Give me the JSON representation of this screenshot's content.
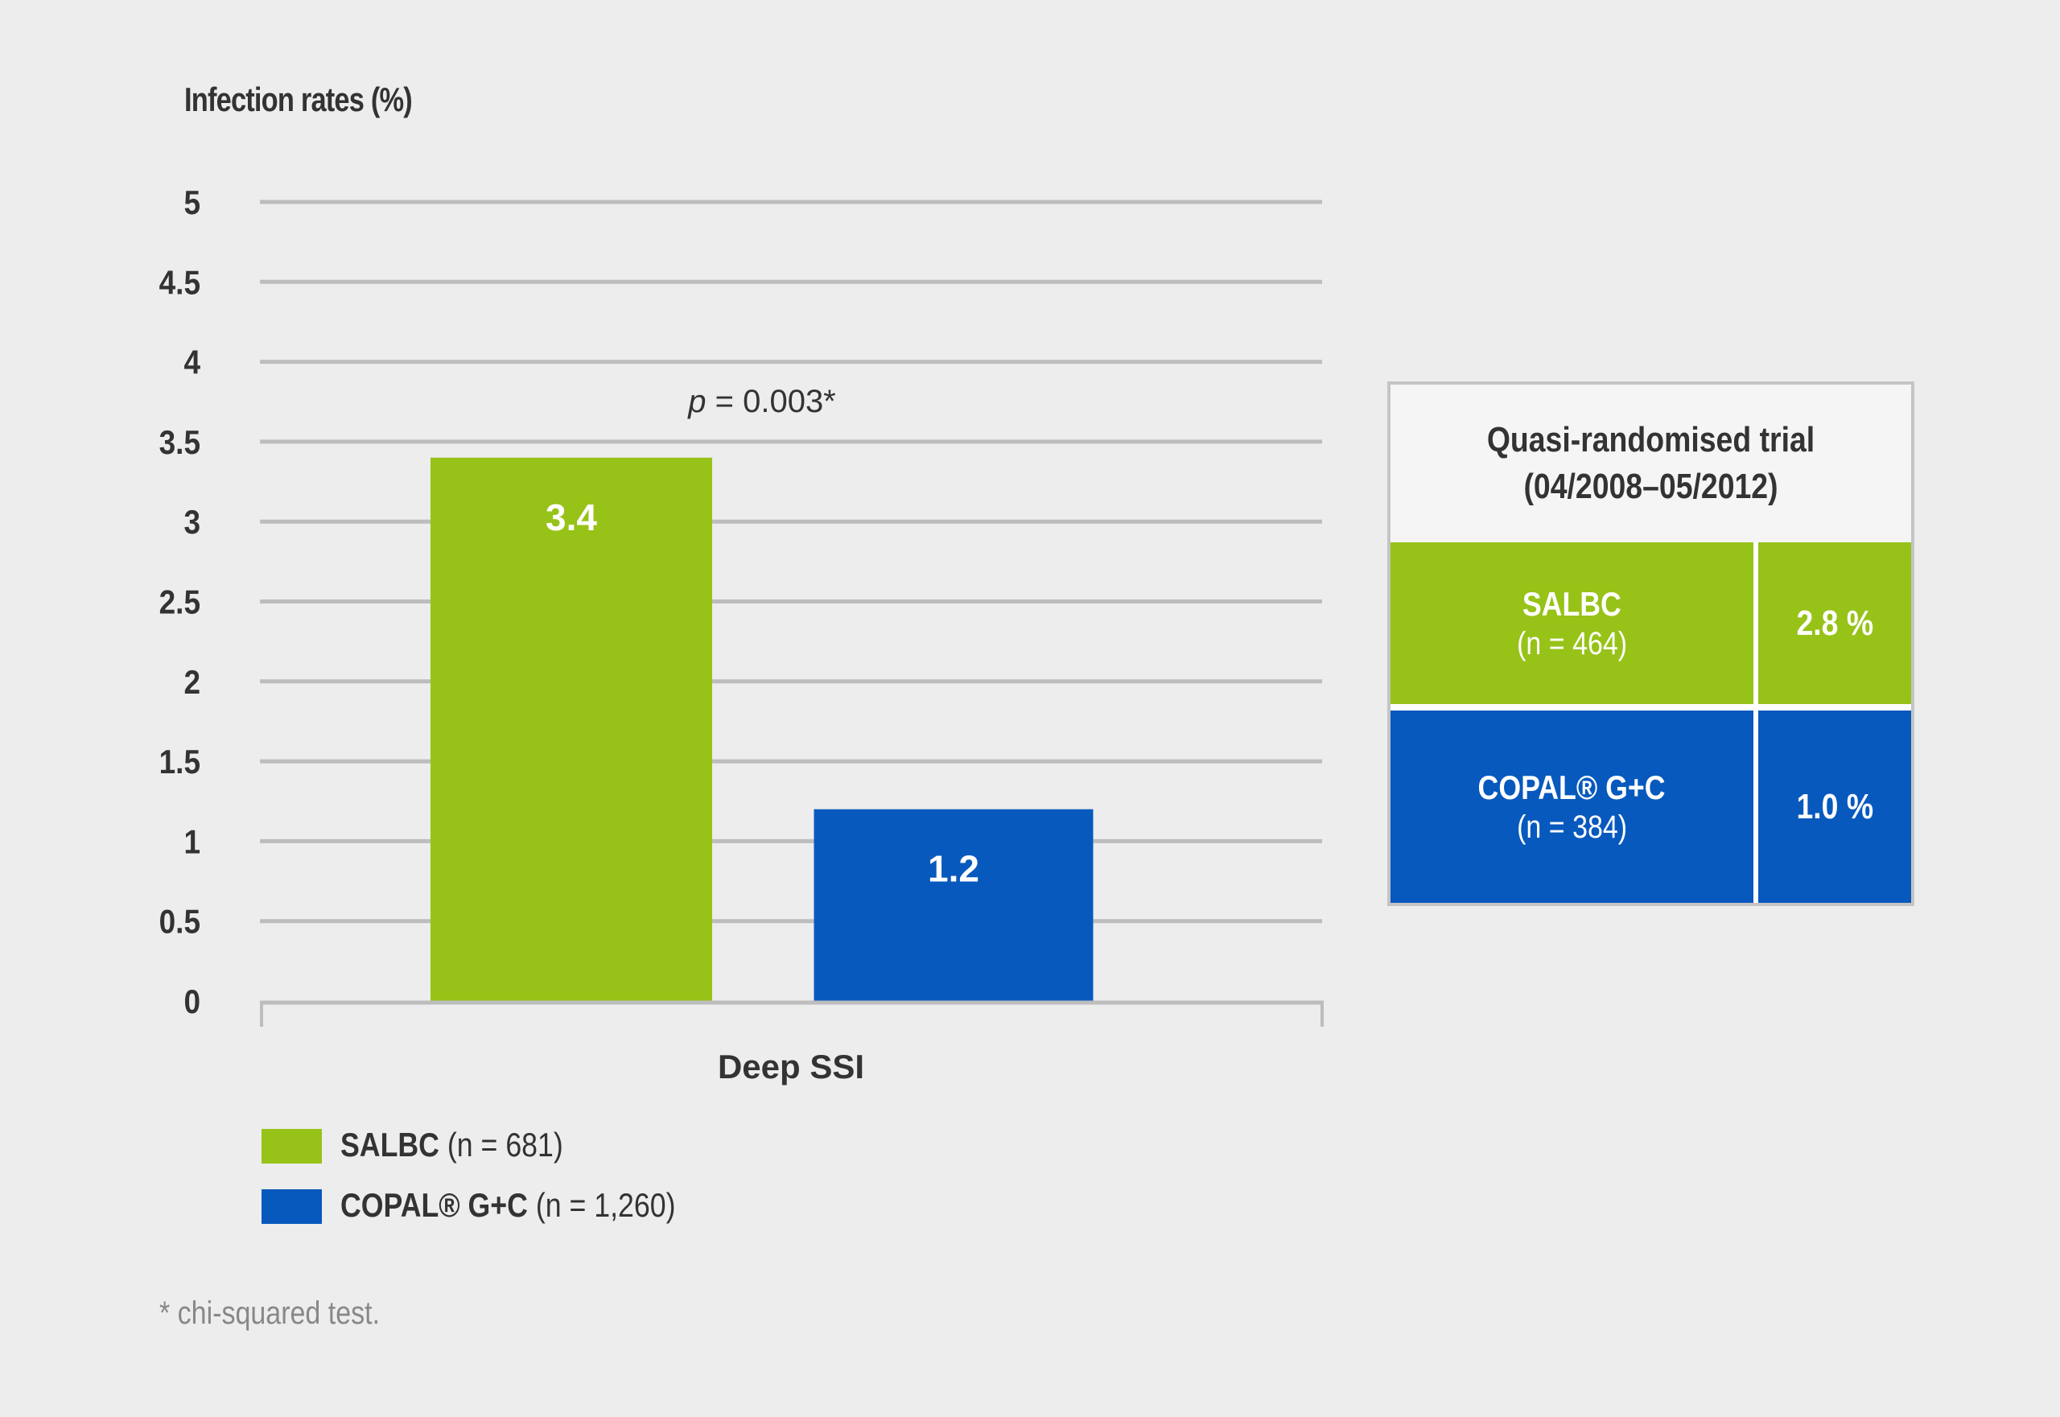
{
  "chart_data": {
    "type": "bar",
    "title": "",
    "ylabel": "Infection rates (%)",
    "xlabel": "",
    "categories": [
      "Deep SSI"
    ],
    "series": [
      {
        "name": "SALBC",
        "n_label": "(n = 681)",
        "color": "#97c218",
        "values": [
          3.4
        ],
        "value_labels": [
          "3.4"
        ]
      },
      {
        "name": "COPAL® G+C",
        "n_label": "(n = 1,260)",
        "color": "#0759bd",
        "values": [
          1.2
        ],
        "value_labels": [
          "1.2"
        ]
      }
    ],
    "ylim": [
      0,
      5
    ],
    "yticks": [
      0,
      0.5,
      1,
      1.5,
      2,
      2.5,
      3,
      3.5,
      4,
      4.5,
      5
    ],
    "ytick_labels": [
      "0",
      "0.5",
      "1",
      "1.5",
      "2",
      "2.5",
      "3",
      "3.5",
      "4",
      "4.5",
      "5"
    ],
    "grid": true,
    "legend_position": "bottom-left",
    "annotations": [
      {
        "text_italic": "p",
        "text": " = 0.003*",
        "position": "above-bars"
      }
    ]
  },
  "colors": {
    "background": "#ededed",
    "grid": "#bdbdbd",
    "text": "#333333",
    "footnote": "#888888",
    "salbc_green": "#97c218",
    "copal_blue": "#0759bd"
  },
  "legend": [
    {
      "name": "SALBC",
      "n": "(n = 681)"
    },
    {
      "name": "COPAL® G+C",
      "n": "(n = 1,260)"
    }
  ],
  "footnote": "* chi-squared test.",
  "trial_box": {
    "title_line1": "Quasi-randomised trial",
    "title_line2": "(04/2008–05/2012)",
    "rows": [
      {
        "name": "SALBC",
        "n": "(n = 464)",
        "value": "2.8 %"
      },
      {
        "name": "COPAL® G+C",
        "n": "(n = 384)",
        "value": "1.0 %"
      }
    ]
  }
}
